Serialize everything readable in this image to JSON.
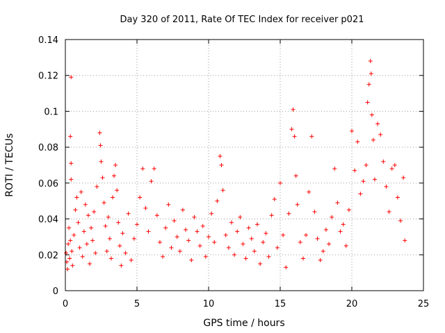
{
  "chart_data": {
    "type": "scatter",
    "title": "Day 320 of 2011, Rate Of TEC Index for receiver p021",
    "xlabel": "GPS time / hours",
    "ylabel": "ROTI / TECUs",
    "xlim": [
      0,
      25
    ],
    "ylim": [
      0,
      0.14
    ],
    "xticks": [
      0,
      5,
      10,
      15,
      20,
      25
    ],
    "yticks": [
      0,
      0.02,
      0.04,
      0.06,
      0.08,
      0.1,
      0.12,
      0.14
    ],
    "xtick_labels": [
      "0",
      "5",
      "10",
      "15",
      "20",
      "25"
    ],
    "ytick_labels": [
      "0",
      "0.02",
      "0.04",
      "0.06",
      "0.08",
      "0.1",
      "0.12",
      "0.14"
    ],
    "grid": true,
    "marker": "+",
    "color": "#ff0000",
    "series": [
      {
        "points": [
          [
            0.05,
            0.021
          ],
          [
            0.1,
            0.016
          ],
          [
            0.15,
            0.012
          ],
          [
            0.2,
            0.026
          ],
          [
            0.25,
            0.035
          ],
          [
            0.3,
            0.018
          ],
          [
            0.35,
            0.028
          ],
          [
            0.4,
            0.119
          ],
          [
            0.4,
            0.071
          ],
          [
            0.45,
            0.022
          ],
          [
            0.35,
            0.086
          ],
          [
            0.4,
            0.062
          ],
          [
            0.5,
            0.014
          ],
          [
            0.6,
            0.031
          ],
          [
            0.7,
            0.045
          ],
          [
            0.8,
            0.052
          ],
          [
            0.9,
            0.038
          ],
          [
            1.0,
            0.024
          ],
          [
            1.1,
            0.055
          ],
          [
            1.2,
            0.019
          ],
          [
            1.3,
            0.033
          ],
          [
            1.4,
            0.048
          ],
          [
            1.5,
            0.026
          ],
          [
            1.6,
            0.042
          ],
          [
            1.7,
            0.015
          ],
          [
            1.8,
            0.035
          ],
          [
            1.9,
            0.028
          ],
          [
            2.0,
            0.044
          ],
          [
            2.1,
            0.021
          ],
          [
            2.2,
            0.058
          ],
          [
            2.4,
            0.088
          ],
          [
            2.45,
            0.081
          ],
          [
            2.5,
            0.072
          ],
          [
            2.6,
            0.063
          ],
          [
            2.7,
            0.049
          ],
          [
            2.8,
            0.036
          ],
          [
            2.9,
            0.022
          ],
          [
            3.0,
            0.041
          ],
          [
            3.1,
            0.029
          ],
          [
            3.2,
            0.018
          ],
          [
            3.3,
            0.052
          ],
          [
            3.4,
            0.064
          ],
          [
            3.5,
            0.07
          ],
          [
            3.6,
            0.056
          ],
          [
            3.7,
            0.038
          ],
          [
            3.8,
            0.025
          ],
          [
            3.9,
            0.014
          ],
          [
            4.0,
            0.032
          ],
          [
            4.2,
            0.021
          ],
          [
            4.4,
            0.043
          ],
          [
            4.6,
            0.017
          ],
          [
            4.8,
            0.029
          ],
          [
            5.0,
            0.037
          ],
          [
            5.2,
            0.052
          ],
          [
            5.4,
            0.068
          ],
          [
            5.6,
            0.046
          ],
          [
            5.8,
            0.033
          ],
          [
            6.0,
            0.061
          ],
          [
            6.2,
            0.068
          ],
          [
            6.4,
            0.042
          ],
          [
            6.6,
            0.027
          ],
          [
            6.8,
            0.019
          ],
          [
            7.0,
            0.035
          ],
          [
            7.2,
            0.048
          ],
          [
            7.4,
            0.024
          ],
          [
            7.6,
            0.039
          ],
          [
            7.8,
            0.03
          ],
          [
            8.0,
            0.022
          ],
          [
            8.2,
            0.045
          ],
          [
            8.4,
            0.034
          ],
          [
            8.6,
            0.028
          ],
          [
            8.8,
            0.017
          ],
          [
            9.0,
            0.041
          ],
          [
            9.2,
            0.033
          ],
          [
            9.4,
            0.025
          ],
          [
            9.6,
            0.036
          ],
          [
            9.8,
            0.019
          ],
          [
            10.0,
            0.03
          ],
          [
            10.2,
            0.043
          ],
          [
            10.4,
            0.027
          ],
          [
            10.6,
            0.05
          ],
          [
            10.8,
            0.075
          ],
          [
            10.9,
            0.07
          ],
          [
            11.0,
            0.056
          ],
          [
            11.2,
            0.031
          ],
          [
            11.4,
            0.024
          ],
          [
            11.6,
            0.038
          ],
          [
            11.8,
            0.02
          ],
          [
            12.0,
            0.033
          ],
          [
            12.2,
            0.041
          ],
          [
            12.4,
            0.026
          ],
          [
            12.6,
            0.018
          ],
          [
            12.8,
            0.035
          ],
          [
            13.0,
            0.029
          ],
          [
            13.2,
            0.022
          ],
          [
            13.4,
            0.037
          ],
          [
            13.6,
            0.015
          ],
          [
            13.8,
            0.027
          ],
          [
            14.0,
            0.032
          ],
          [
            14.2,
            0.019
          ],
          [
            14.4,
            0.042
          ],
          [
            14.6,
            0.051
          ],
          [
            14.8,
            0.024
          ],
          [
            15.0,
            0.06
          ],
          [
            15.2,
            0.031
          ],
          [
            15.4,
            0.013
          ],
          [
            15.6,
            0.043
          ],
          [
            15.8,
            0.09
          ],
          [
            15.9,
            0.101
          ],
          [
            16.0,
            0.086
          ],
          [
            16.1,
            0.064
          ],
          [
            16.2,
            0.048
          ],
          [
            16.4,
            0.027
          ],
          [
            16.6,
            0.018
          ],
          [
            16.8,
            0.031
          ],
          [
            17.0,
            0.055
          ],
          [
            17.2,
            0.086
          ],
          [
            17.4,
            0.044
          ],
          [
            17.6,
            0.029
          ],
          [
            17.8,
            0.017
          ],
          [
            18.0,
            0.022
          ],
          [
            18.2,
            0.034
          ],
          [
            18.4,
            0.026
          ],
          [
            18.6,
            0.041
          ],
          [
            18.8,
            0.068
          ],
          [
            19.0,
            0.049
          ],
          [
            19.2,
            0.033
          ],
          [
            19.4,
            0.037
          ],
          [
            19.6,
            0.025
          ],
          [
            19.8,
            0.045
          ],
          [
            20.0,
            0.089
          ],
          [
            20.2,
            0.067
          ],
          [
            20.4,
            0.083
          ],
          [
            20.6,
            0.054
          ],
          [
            20.8,
            0.061
          ],
          [
            21.0,
            0.07
          ],
          [
            21.1,
            0.105
          ],
          [
            21.2,
            0.115
          ],
          [
            21.3,
            0.128
          ],
          [
            21.35,
            0.121
          ],
          [
            21.4,
            0.098
          ],
          [
            21.5,
            0.084
          ],
          [
            21.6,
            0.062
          ],
          [
            21.8,
            0.093
          ],
          [
            22.0,
            0.087
          ],
          [
            22.2,
            0.072
          ],
          [
            22.4,
            0.058
          ],
          [
            22.6,
            0.044
          ],
          [
            22.8,
            0.068
          ],
          [
            23.0,
            0.07
          ],
          [
            23.2,
            0.052
          ],
          [
            23.4,
            0.039
          ],
          [
            23.6,
            0.063
          ],
          [
            23.7,
            0.028
          ]
        ]
      }
    ]
  }
}
